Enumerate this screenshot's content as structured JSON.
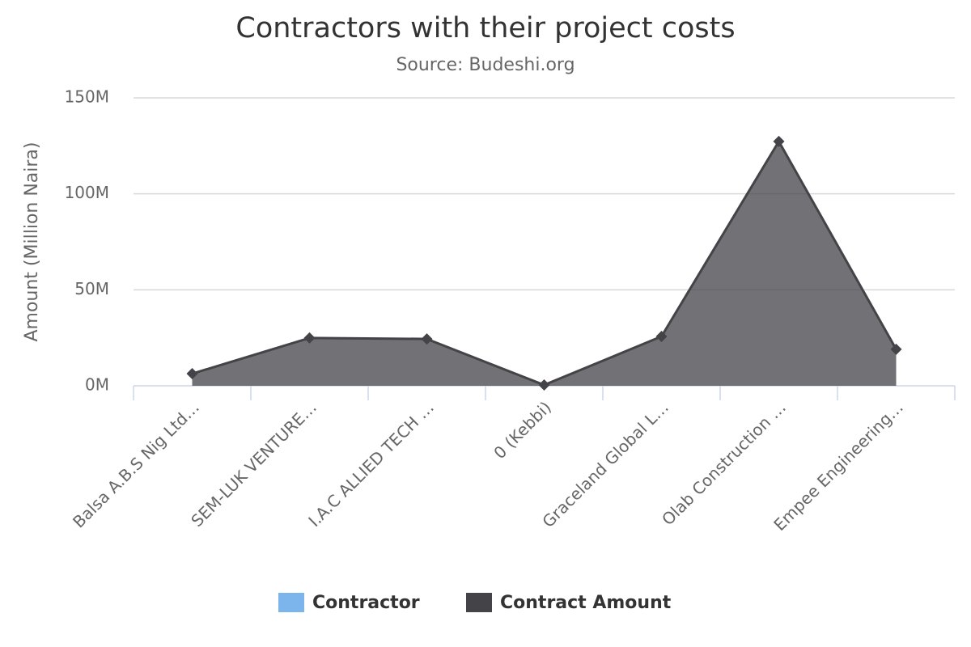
{
  "chart_data": {
    "type": "area",
    "title": "Contractors with their project costs",
    "subtitle": "Source: Budeshi.org",
    "y_axis_label": "Amount (Million Naira)",
    "categories": [
      "Balsa A.B.S Nig Ltd…",
      "SEM-LUK VENTURE…",
      "I.A.C ALLIED TECH …",
      "0 (Kebbi)",
      "Graceland Global L…",
      "Olab Construction …",
      "Empee Engineering…"
    ],
    "series": [
      {
        "name": "Contractor",
        "color": "#7cb5ec",
        "values": [
          null,
          null,
          null,
          null,
          null,
          null,
          null
        ]
      },
      {
        "name": "Contract Amount",
        "color": "#434348",
        "values": [
          6.3,
          24.9,
          24.4,
          0.4,
          25.7,
          127.3,
          19.0
        ]
      }
    ],
    "ylim": [
      0,
      150
    ],
    "yticks": [
      {
        "value": 0,
        "label": "0M"
      },
      {
        "value": 50,
        "label": "50M"
      },
      {
        "value": 100,
        "label": "100M"
      },
      {
        "value": 150,
        "label": "150M"
      }
    ],
    "grid": true,
    "legend": "bottom"
  }
}
